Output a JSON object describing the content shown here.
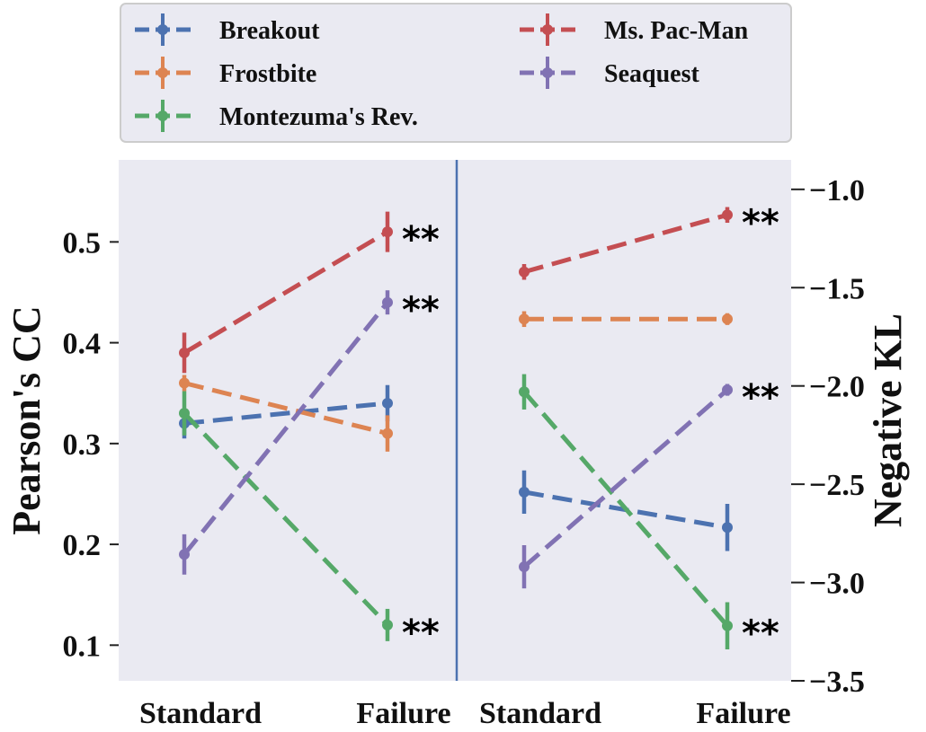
{
  "chart_data": {
    "type": "line",
    "categories": [
      "Standard",
      "Failure"
    ],
    "legend": {
      "placement": "top",
      "entries": [
        {
          "name": "Breakout",
          "color": "#4c72b0"
        },
        {
          "name": "Ms. Pac-Man",
          "color": "#c44e52"
        },
        {
          "name": "Frostbite",
          "color": "#dd8452"
        },
        {
          "name": "Seaquest",
          "color": "#8172b3"
        },
        {
          "name": "Montezuma's Rev.",
          "color": "#55a868"
        }
      ]
    },
    "left_panel": {
      "ylabel": "Pearson's CC",
      "ylim": [
        0.07,
        0.56
      ],
      "yticks": [
        0.1,
        0.2,
        0.3,
        0.4,
        0.5
      ],
      "ytick_labels": [
        "0.1",
        "0.2",
        "0.3",
        "0.4",
        "0.5"
      ],
      "series": [
        {
          "name": "Breakout",
          "color": "#4c72b0",
          "values": [
            0.32,
            0.34
          ],
          "errors": [
            0.015,
            0.018
          ],
          "significant": [
            false,
            false
          ]
        },
        {
          "name": "Frostbite",
          "color": "#dd8452",
          "values": [
            0.36,
            0.31
          ],
          "errors": [
            0.008,
            0.018
          ],
          "significant": [
            false,
            false
          ]
        },
        {
          "name": "Montezuma's Rev.",
          "color": "#55a868",
          "values": [
            0.33,
            0.12
          ],
          "errors": [
            0.022,
            0.016
          ],
          "significant": [
            false,
            true
          ]
        },
        {
          "name": "Ms. Pac-Man",
          "color": "#c44e52",
          "values": [
            0.39,
            0.51
          ],
          "errors": [
            0.02,
            0.02
          ],
          "significant": [
            false,
            true
          ]
        },
        {
          "name": "Seaquest",
          "color": "#8172b3",
          "values": [
            0.19,
            0.44
          ],
          "errors": [
            0.02,
            0.012
          ],
          "significant": [
            false,
            true
          ]
        }
      ]
    },
    "right_panel": {
      "ylabel": "Negative KL",
      "ylim": [
        -3.5,
        -0.85
      ],
      "yticks": [
        -3.5,
        -3.0,
        -2.5,
        -2.0,
        -1.5,
        -1.0
      ],
      "ytick_labels": [
        "−3.5",
        "−3.0",
        "−2.5",
        "−2.0",
        "−1.5",
        "−1.0"
      ],
      "series": [
        {
          "name": "Breakout",
          "color": "#4c72b0",
          "values": [
            -2.54,
            -2.72
          ],
          "errors": [
            0.11,
            0.12
          ],
          "significant": [
            false,
            false
          ]
        },
        {
          "name": "Frostbite",
          "color": "#dd8452",
          "values": [
            -1.66,
            -1.66
          ],
          "errors": [
            0.04,
            0.03
          ],
          "significant": [
            false,
            false
          ]
        },
        {
          "name": "Montezuma's Rev.",
          "color": "#55a868",
          "values": [
            -2.03,
            -3.22
          ],
          "errors": [
            0.09,
            0.12
          ],
          "significant": [
            false,
            true
          ]
        },
        {
          "name": "Ms. Pac-Man",
          "color": "#c44e52",
          "values": [
            -1.42,
            -1.13
          ],
          "errors": [
            0.04,
            0.04
          ],
          "significant": [
            false,
            true
          ]
        },
        {
          "name": "Seaquest",
          "color": "#8172b3",
          "values": [
            -2.92,
            -2.02
          ],
          "errors": [
            0.11,
            0.03
          ],
          "significant": [
            false,
            true
          ]
        }
      ]
    },
    "significance_marker": "**",
    "grid": false
  }
}
